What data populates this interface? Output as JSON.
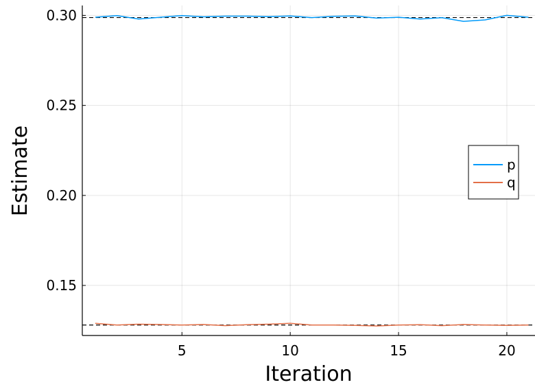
{
  "chart_data": {
    "type": "line",
    "title": "",
    "xlabel": "Iteration",
    "ylabel": "Estimate",
    "xlim": [
      0.4,
      21.3
    ],
    "ylim": [
      0.1222,
      0.3055
    ],
    "x_ticks": [
      5,
      10,
      15,
      20
    ],
    "y_ticks": [
      0.15,
      0.2,
      0.25,
      0.3
    ],
    "x_tick_labels": [
      "5",
      "10",
      "15",
      "20"
    ],
    "y_tick_labels": [
      "0.15",
      "0.20",
      "0.25",
      "0.30"
    ],
    "grid": true,
    "legend_position": "right",
    "x": [
      1,
      2,
      3,
      4,
      5,
      6,
      7,
      8,
      9,
      10,
      11,
      12,
      13,
      14,
      15,
      16,
      17,
      18,
      19,
      20,
      21
    ],
    "series": [
      {
        "name": "p",
        "color": "#009AFA",
        "values": [
          0.299,
          0.2999,
          0.298,
          0.299,
          0.2999,
          0.2992,
          0.2996,
          0.2996,
          0.2993,
          0.2997,
          0.2988,
          0.2995,
          0.2997,
          0.2985,
          0.299,
          0.298,
          0.2987,
          0.2967,
          0.2975,
          0.3,
          0.299
        ]
      },
      {
        "name": "q",
        "color": "#E36F47",
        "values": [
          0.129,
          0.128,
          0.1285,
          0.1283,
          0.128,
          0.1283,
          0.1277,
          0.1282,
          0.1285,
          0.129,
          0.128,
          0.128,
          0.1278,
          0.1275,
          0.128,
          0.1282,
          0.1277,
          0.1283,
          0.128,
          0.1278,
          0.128
        ]
      }
    ],
    "reference_lines": [
      {
        "y": 0.2988,
        "style": "dashed",
        "color": "#000000"
      },
      {
        "y": 0.128,
        "style": "dashed",
        "color": "#000000"
      }
    ]
  }
}
